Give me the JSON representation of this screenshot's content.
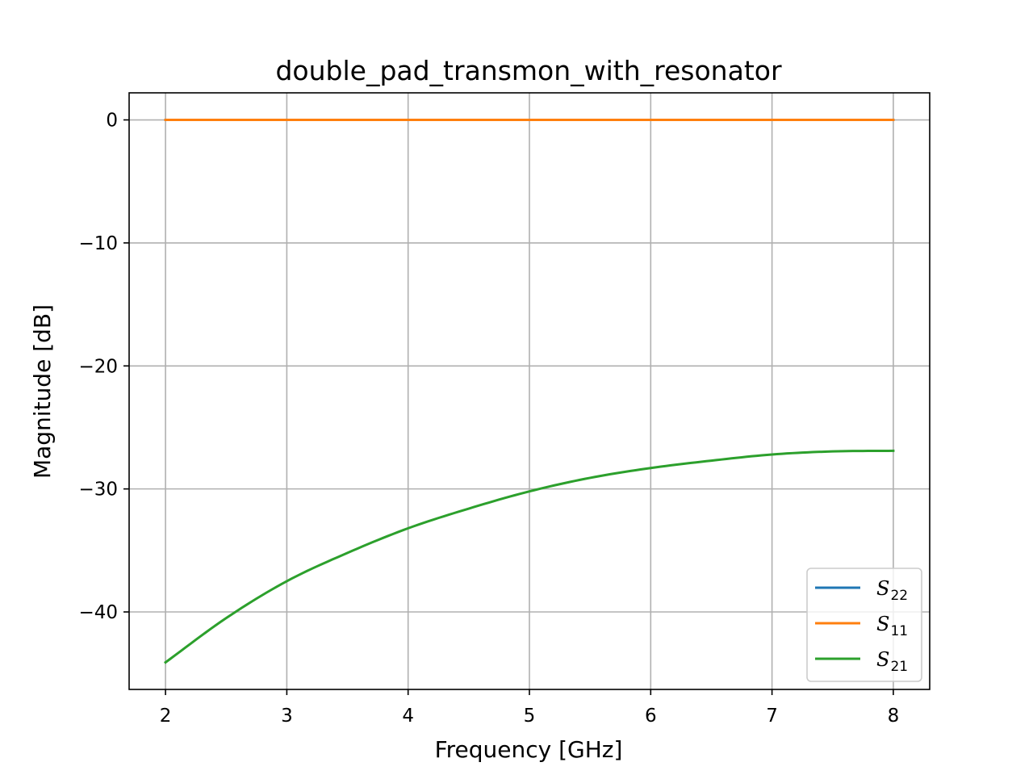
{
  "chart_data": {
    "type": "line",
    "title": "double_pad_transmon_with_resonator",
    "xlabel": "Frequency [GHz]",
    "ylabel": "Magnitude [dB]",
    "xlim": [
      1.7,
      8.3
    ],
    "ylim": [
      -46.3,
      2.2
    ],
    "xticks": [
      2,
      3,
      4,
      5,
      6,
      7,
      8
    ],
    "xtick_labels": [
      "2",
      "3",
      "4",
      "5",
      "6",
      "7",
      "8"
    ],
    "yticks": [
      0,
      -10,
      -20,
      -30,
      -40
    ],
    "ytick_labels": [
      "0",
      "−10",
      "−20",
      "−30",
      "−40"
    ],
    "grid": true,
    "legend_position": "bottom-right",
    "x": [
      2.0,
      2.5,
      3.0,
      3.5,
      4.0,
      4.5,
      5.0,
      5.5,
      6.0,
      6.5,
      7.0,
      7.5,
      8.0
    ],
    "series": [
      {
        "name": "S22",
        "legend_base": "S",
        "legend_sub": "22",
        "color": "#1f77b4",
        "values": [
          0,
          0,
          0,
          0,
          0,
          0,
          0,
          0,
          0,
          0,
          0,
          0,
          0
        ]
      },
      {
        "name": "S11",
        "legend_base": "S",
        "legend_sub": "11",
        "color": "#ff7f0e",
        "values": [
          0,
          0,
          0,
          0,
          0,
          0,
          0,
          0,
          0,
          0,
          0,
          0,
          0
        ]
      },
      {
        "name": "S21",
        "legend_base": "S",
        "legend_sub": "21",
        "color": "#2ca02c",
        "values": [
          -44.1,
          -40.5,
          -37.5,
          -35.2,
          -33.2,
          -31.6,
          -30.2,
          -29.1,
          -28.3,
          -27.7,
          -27.2,
          -26.95,
          -26.9
        ]
      }
    ]
  }
}
